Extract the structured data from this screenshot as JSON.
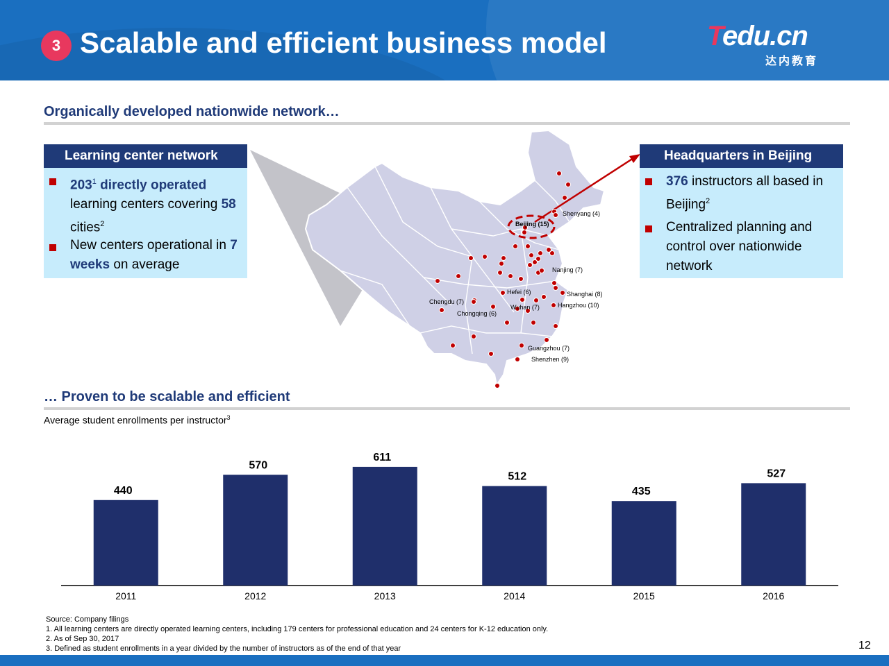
{
  "header": {
    "section_number": "3",
    "title": "Scalable and efficient business model",
    "logo_text": "Tedu.cn",
    "logo_sub": "达内教育"
  },
  "network_section": {
    "heading": "Organically developed nationwide network…"
  },
  "left_panel": {
    "title": "Learning center network",
    "bullets": [
      {
        "pre": "",
        "bold1": "203",
        "sup": "1",
        "bold2": " directly operated",
        "mid": " learning centers covering ",
        "bold3": "58",
        "post": " cities",
        "sup2": "2"
      },
      {
        "pre": "New centers operational in ",
        "bold1": "7",
        "bold2": "weeks",
        "post": " on average"
      }
    ]
  },
  "right_panel": {
    "title": "Headquarters in Beijing",
    "bullets": [
      {
        "bold": "376",
        "text": " instructors all based in Beijing",
        "sup": "2"
      },
      {
        "text": "Centralized planning and control over nationwide network"
      }
    ]
  },
  "map": {
    "cities": [
      {
        "label": "Beijing (15)"
      },
      {
        "label": "Shenyang (4)"
      },
      {
        "label": "Nanjing (7)"
      },
      {
        "label": "Hefei (6)"
      },
      {
        "label": "Shanghai (8)"
      },
      {
        "label": "Chengdu (7)"
      },
      {
        "label": "Wuhan (7)"
      },
      {
        "label": "Hangzhou (10)"
      },
      {
        "label": "Chongqing (6)"
      },
      {
        "label": "Guangzhou (7)"
      },
      {
        "label": "Shenzhen (9)"
      }
    ],
    "marker_color": "#c00000"
  },
  "scalable_section": {
    "heading": "… Proven to be scalable and efficient",
    "subtitle": "Average student enrollments per instructor",
    "subtitle_sup": "3"
  },
  "chart_data": {
    "type": "bar",
    "title": "Average student enrollments per instructor",
    "categories": [
      "2011",
      "2012",
      "2013",
      "2014",
      "2015",
      "2016"
    ],
    "values": [
      440,
      570,
      611,
      512,
      435,
      527
    ],
    "bar_color": "#1f2f6b",
    "ylim": [
      0,
      1000
    ],
    "grid": false,
    "legend": "none"
  },
  "footnotes": [
    "Source: Company filings",
    "1. All learning centers are directly operated learning centers, including 179 centers for professional education and 24 centers for K-12 education only.",
    "2. As of Sep 30, 2017",
    "3. Defined as student enrollments in a year divided by the number of instructors as of the end of that year"
  ],
  "page_number": "12"
}
